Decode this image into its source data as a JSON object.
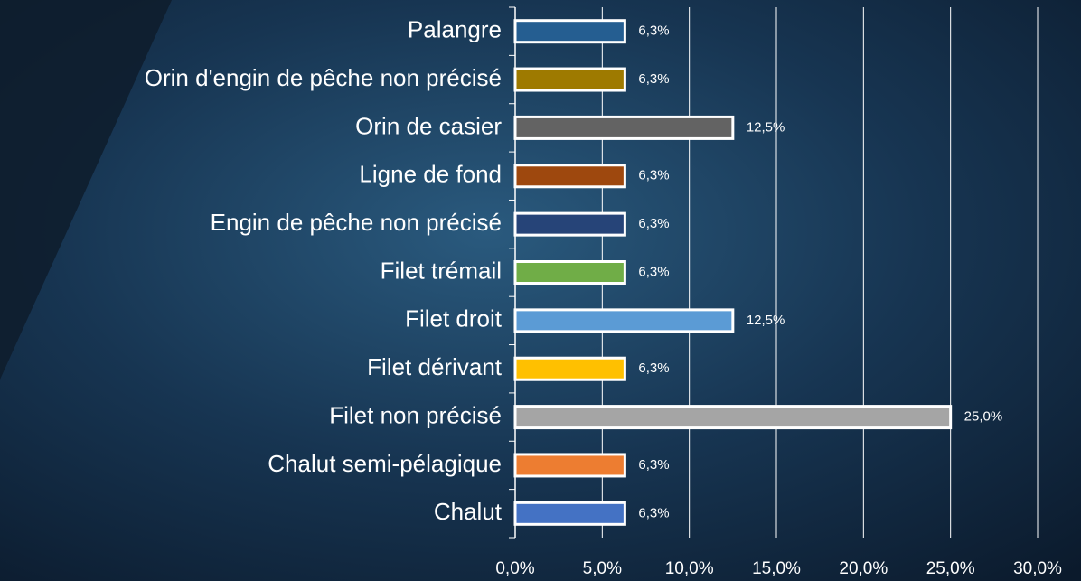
{
  "chart_data": {
    "type": "barh",
    "categories": [
      "Palangre",
      "Orin d'engin de pêche non précisé",
      "Orin de casier",
      "Ligne de fond",
      "Engin de pêche non précisé",
      "Filet trémail",
      "Filet droit",
      "Filet dérivant",
      "Filet non précisé",
      "Chalut semi-pélagique",
      "Chalut"
    ],
    "values": [
      6.3,
      6.3,
      12.5,
      6.3,
      6.3,
      6.3,
      12.5,
      6.3,
      25.0,
      6.3,
      6.3
    ],
    "value_labels": [
      "6,3%",
      "6,3%",
      "12,5%",
      "6,3%",
      "6,3%",
      "6,3%",
      "12,5%",
      "6,3%",
      "25,0%",
      "6,3%",
      "6,3%"
    ],
    "colors": [
      "#255e91",
      "#9e7a00",
      "#636363",
      "#9e480e",
      "#264478",
      "#70ad47",
      "#5b9bd5",
      "#ffc000",
      "#a5a5a5",
      "#ed7d31",
      "#4472c4"
    ],
    "xlim": [
      0,
      30
    ],
    "xticks": [
      {
        "value": 0,
        "label": "0,0%"
      },
      {
        "value": 5,
        "label": "5,0%"
      },
      {
        "value": 10,
        "label": "10,0%"
      },
      {
        "value": 15,
        "label": "15,0%"
      },
      {
        "value": 20,
        "label": "20,0%"
      },
      {
        "value": 25,
        "label": "25,0%"
      },
      {
        "value": 30,
        "label": "30,0%"
      }
    ],
    "grid": true
  }
}
